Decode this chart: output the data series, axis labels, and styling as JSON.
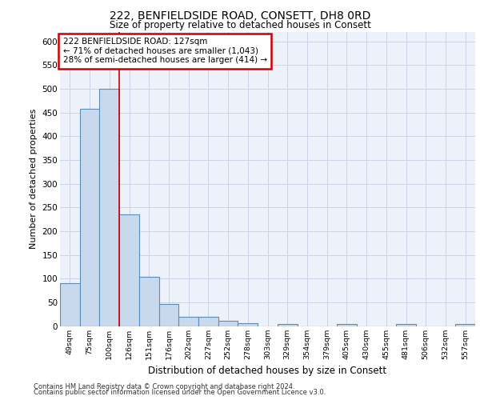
{
  "title1": "222, BENFIELDSIDE ROAD, CONSETT, DH8 0RD",
  "title2": "Size of property relative to detached houses in Consett",
  "xlabel": "Distribution of detached houses by size in Consett",
  "ylabel": "Number of detached properties",
  "categories": [
    "49sqm",
    "75sqm",
    "100sqm",
    "126sqm",
    "151sqm",
    "176sqm",
    "202sqm",
    "227sqm",
    "252sqm",
    "278sqm",
    "303sqm",
    "329sqm",
    "354sqm",
    "379sqm",
    "405sqm",
    "430sqm",
    "455sqm",
    "481sqm",
    "506sqm",
    "532sqm",
    "557sqm"
  ],
  "values": [
    90,
    458,
    500,
    235,
    104,
    46,
    20,
    20,
    11,
    6,
    0,
    5,
    0,
    0,
    4,
    0,
    0,
    4,
    0,
    0,
    4
  ],
  "bar_color": "#c8d8ed",
  "bar_edge_color": "#5b8db8",
  "annotation_text": "222 BENFIELDSIDE ROAD: 127sqm\n← 71% of detached houses are smaller (1,043)\n28% of semi-detached houses are larger (414) →",
  "annotation_box_color": "#ffffff",
  "annotation_box_edge": "#cc0000",
  "red_line_x": 2.5,
  "ylim": [
    0,
    620
  ],
  "yticks": [
    0,
    50,
    100,
    150,
    200,
    250,
    300,
    350,
    400,
    450,
    500,
    550,
    600
  ],
  "footer1": "Contains HM Land Registry data © Crown copyright and database right 2024.",
  "footer2": "Contains public sector information licensed under the Open Government Licence v3.0.",
  "grid_color": "#c8d4e8",
  "background_color": "#edf1f9"
}
